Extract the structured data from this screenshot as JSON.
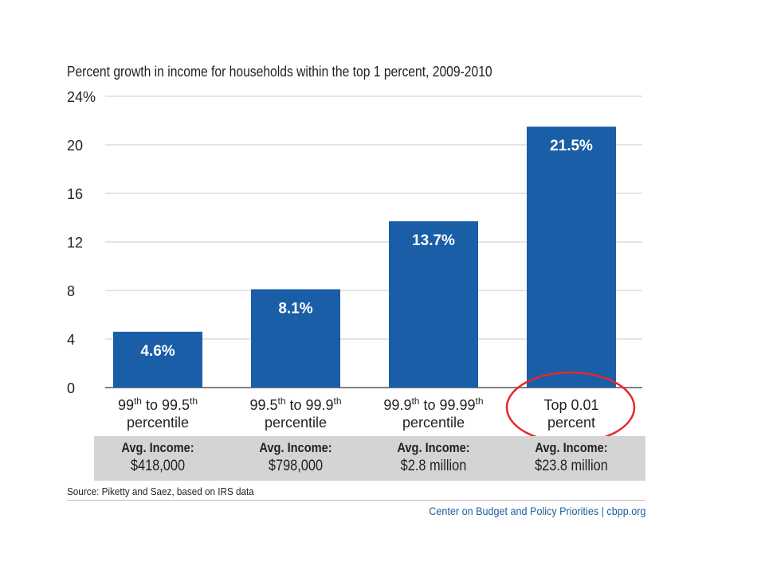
{
  "title": "Percent growth in income for households within the top 1 percent, 2009-2010",
  "chart_data": {
    "type": "bar",
    "categories": [
      {
        "line1": [
          "99",
          "th",
          " to 99.5",
          "th"
        ],
        "line2": "percentile"
      },
      {
        "line1": [
          "99.5",
          "th",
          " to 99.9",
          "th"
        ],
        "line2": "percentile"
      },
      {
        "line1": [
          "99.9",
          "th",
          " to 99.99",
          "th"
        ],
        "line2": "percentile"
      },
      {
        "line1": [
          "Top 0.01"
        ],
        "line2": "percent"
      }
    ],
    "values": [
      4.6,
      8.1,
      13.7,
      21.5
    ],
    "data_labels": [
      "4.6%",
      "8.1%",
      "13.7%",
      "21.5%"
    ],
    "ylim": [
      0,
      24
    ],
    "yticks": [
      0,
      4,
      8,
      12,
      16,
      20,
      24
    ],
    "ytick_labels": [
      "0",
      "4",
      "8",
      "12",
      "16",
      "20",
      "24%"
    ],
    "grid": true,
    "bar_color": "#1a5ea8",
    "highlight_color": "#e8262b",
    "highlighted_category_index": 3
  },
  "avg_income": {
    "label": "Avg. Income:",
    "values": [
      "$418,000",
      "$798,000",
      "$2.8 million",
      "$23.8 million"
    ]
  },
  "source": "Source: Piketty and Saez, based on IRS data",
  "credit": "Center on Budget and Policy Priorities | cbpp.org"
}
